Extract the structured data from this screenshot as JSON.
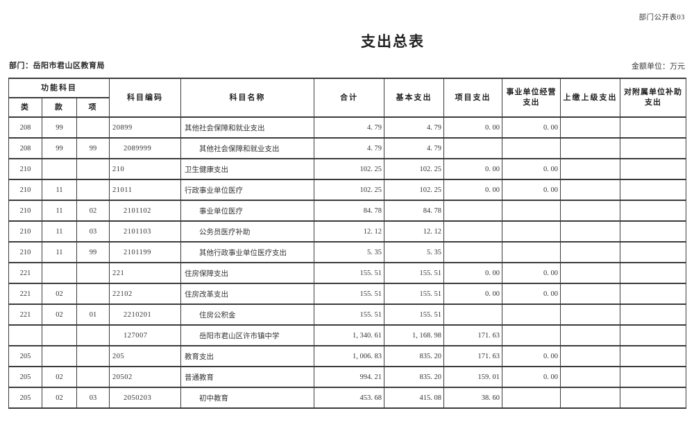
{
  "page": {
    "corner_label": "部门公开表03",
    "title": "支出总表",
    "department_label": "部门：岳阳市君山区教育局",
    "unit_label": "金额单位：万元"
  },
  "table": {
    "header": {
      "func_group": "功能科目",
      "func_cols": [
        "类",
        "款",
        "项"
      ],
      "cols": [
        "科目编码",
        "科目名称",
        "合计",
        "基本支出",
        "项目支出",
        "事业单位经营支出",
        "上缴上级支出",
        "对附属单位补助支出"
      ]
    },
    "rows": [
      {
        "lei": "208",
        "kuan": "99",
        "xiang": "",
        "code": "20899",
        "name": "其他社会保障和就业支出",
        "indent": 0,
        "total": "4. 79",
        "basic": "4. 79",
        "project": "0. 00",
        "operating": "0. 00",
        "upper": "",
        "subsidy": ""
      },
      {
        "lei": "208",
        "kuan": "99",
        "xiang": "99",
        "code": "2089999",
        "name": "其他社会保障和就业支出",
        "indent": 1,
        "total": "4. 79",
        "basic": "4. 79",
        "project": "",
        "operating": "",
        "upper": "",
        "subsidy": ""
      },
      {
        "lei": "210",
        "kuan": "",
        "xiang": "",
        "code": "210",
        "name": "卫生健康支出",
        "indent": 0,
        "total": "102. 25",
        "basic": "102. 25",
        "project": "0. 00",
        "operating": "0. 00",
        "upper": "",
        "subsidy": ""
      },
      {
        "lei": "210",
        "kuan": "11",
        "xiang": "",
        "code": "21011",
        "name": "行政事业单位医疗",
        "indent": 0,
        "total": "102. 25",
        "basic": "102. 25",
        "project": "0. 00",
        "operating": "0. 00",
        "upper": "",
        "subsidy": ""
      },
      {
        "lei": "210",
        "kuan": "11",
        "xiang": "02",
        "code": "2101102",
        "name": "事业单位医疗",
        "indent": 1,
        "total": "84. 78",
        "basic": "84. 78",
        "project": "",
        "operating": "",
        "upper": "",
        "subsidy": ""
      },
      {
        "lei": "210",
        "kuan": "11",
        "xiang": "03",
        "code": "2101103",
        "name": "公务员医疗补助",
        "indent": 1,
        "total": "12. 12",
        "basic": "12. 12",
        "project": "",
        "operating": "",
        "upper": "",
        "subsidy": ""
      },
      {
        "lei": "210",
        "kuan": "11",
        "xiang": "99",
        "code": "2101199",
        "name": "其他行政事业单位医疗支出",
        "indent": 1,
        "total": "5. 35",
        "basic": "5. 35",
        "project": "",
        "operating": "",
        "upper": "",
        "subsidy": ""
      },
      {
        "lei": "221",
        "kuan": "",
        "xiang": "",
        "code": "221",
        "name": "住房保障支出",
        "indent": 0,
        "total": "155. 51",
        "basic": "155. 51",
        "project": "0. 00",
        "operating": "0. 00",
        "upper": "",
        "subsidy": ""
      },
      {
        "lei": "221",
        "kuan": "02",
        "xiang": "",
        "code": "22102",
        "name": "住房改革支出",
        "indent": 0,
        "total": "155. 51",
        "basic": "155. 51",
        "project": "0. 00",
        "operating": "0. 00",
        "upper": "",
        "subsidy": ""
      },
      {
        "lei": "221",
        "kuan": "02",
        "xiang": "01",
        "code": "2210201",
        "name": "住房公积金",
        "indent": 1,
        "total": "155. 51",
        "basic": "155. 51",
        "project": "",
        "operating": "",
        "upper": "",
        "subsidy": ""
      },
      {
        "lei": "",
        "kuan": "",
        "xiang": "",
        "code": "127007",
        "name": "岳阳市君山区许市镇中学",
        "indent": 1,
        "total": "1, 340. 61",
        "basic": "1, 168. 98",
        "project": "171. 63",
        "operating": "",
        "upper": "",
        "subsidy": ""
      },
      {
        "lei": "205",
        "kuan": "",
        "xiang": "",
        "code": "205",
        "name": "教育支出",
        "indent": 0,
        "total": "1, 006. 83",
        "basic": "835. 20",
        "project": "171. 63",
        "operating": "0. 00",
        "upper": "",
        "subsidy": ""
      },
      {
        "lei": "205",
        "kuan": "02",
        "xiang": "",
        "code": "20502",
        "name": "普通教育",
        "indent": 0,
        "total": "994. 21",
        "basic": "835. 20",
        "project": "159. 01",
        "operating": "0. 00",
        "upper": "",
        "subsidy": ""
      },
      {
        "lei": "205",
        "kuan": "02",
        "xiang": "03",
        "code": "2050203",
        "name": "初中教育",
        "indent": 1,
        "total": "453. 68",
        "basic": "415. 08",
        "project": "38. 60",
        "operating": "",
        "upper": "",
        "subsidy": ""
      }
    ]
  }
}
